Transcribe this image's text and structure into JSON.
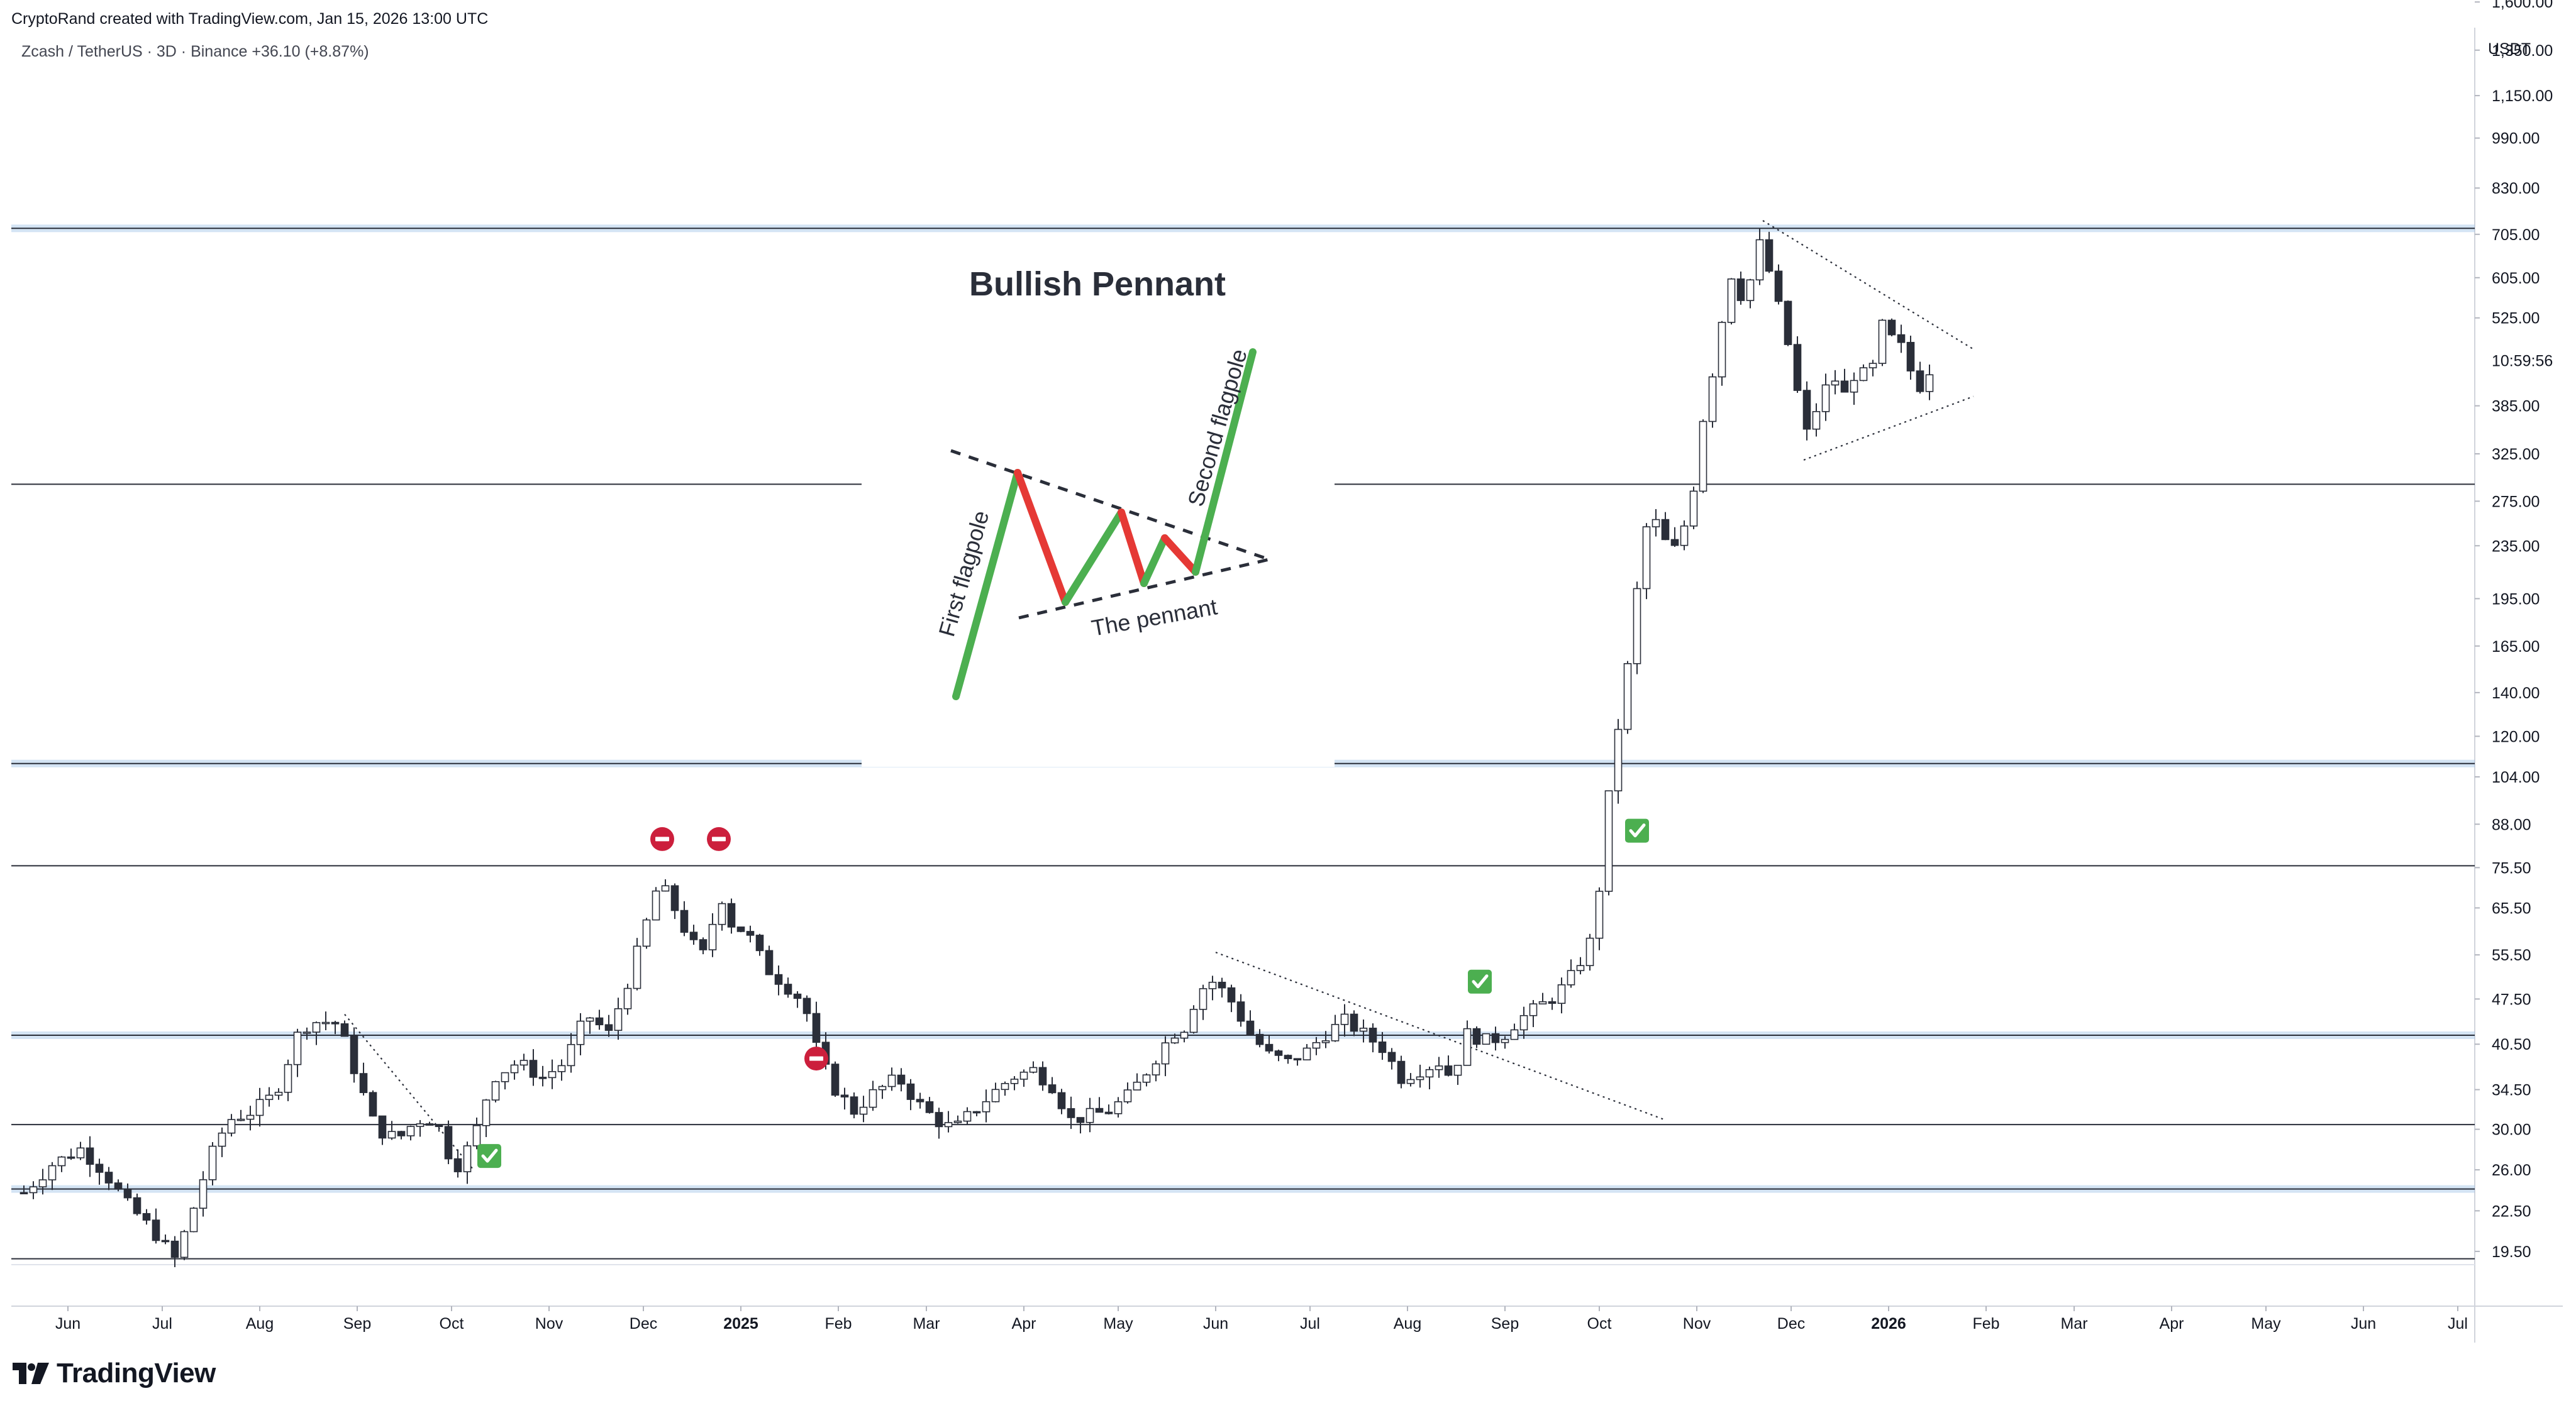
{
  "header": {
    "credit": "CryptoRand created with TradingView.com, Jan 15, 2026 13:00 UTC",
    "symbol": "Zcash / TetherUS · 3D · Binance",
    "change": "+36.10 (+8.87%)"
  },
  "branding": {
    "logo_text": "TradingView",
    "logo_icon": "tradingview-logo-icon"
  },
  "colors": {
    "up_candle": "#ffffff",
    "down_candle": "#2a2e39",
    "candle_outline": "#2a2e39",
    "support_band": "#9fc3e7",
    "pennant_green": "#4caf50",
    "pennant_red": "#e53935",
    "stop_marker": "#cc1f3c",
    "check_marker": "#4caf50"
  },
  "chart_data": {
    "type": "candlestick",
    "y_scale": "log",
    "y_unit": "USDT",
    "ylim": [
      17.5,
      1800
    ],
    "y_ticks": [
      "1,600.00",
      "1,350.00",
      "1,150.00",
      "990.00",
      "830.00",
      "705.00",
      "605.00",
      "525.00",
      "385.00",
      "325.00",
      "275.00",
      "235.00",
      "195.00",
      "165.00",
      "140.00",
      "120.00",
      "104.00",
      "88.00",
      "75.50",
      "65.50",
      "55.50",
      "47.50",
      "40.50",
      "34.50",
      "30.00",
      "26.00",
      "22.50",
      "19.50"
    ],
    "countdown_label": "10:59:56",
    "countdown_value": 452,
    "x_ticks": [
      {
        "label": "Jun",
        "date": "2024-06-01"
      },
      {
        "label": "Jul",
        "date": "2024-07-01"
      },
      {
        "label": "Aug",
        "date": "2024-08-01"
      },
      {
        "label": "Sep",
        "date": "2024-09-01"
      },
      {
        "label": "Oct",
        "date": "2024-10-01"
      },
      {
        "label": "Nov",
        "date": "2024-11-01"
      },
      {
        "label": "Dec",
        "date": "2024-12-01"
      },
      {
        "label": "2025",
        "date": "2025-01-01",
        "bold": true
      },
      {
        "label": "Feb",
        "date": "2025-02-01"
      },
      {
        "label": "Mar",
        "date": "2025-03-01"
      },
      {
        "label": "Apr",
        "date": "2025-04-01"
      },
      {
        "label": "May",
        "date": "2025-05-01"
      },
      {
        "label": "Jun",
        "date": "2025-06-01"
      },
      {
        "label": "Jul",
        "date": "2025-07-01"
      },
      {
        "label": "Aug",
        "date": "2025-08-01"
      },
      {
        "label": "Sep",
        "date": "2025-09-01"
      },
      {
        "label": "Oct",
        "date": "2025-10-01"
      },
      {
        "label": "Nov",
        "date": "2025-11-01"
      },
      {
        "label": "Dec",
        "date": "2025-12-01"
      },
      {
        "label": "2026",
        "date": "2026-01-01",
        "bold": true
      },
      {
        "label": "Feb",
        "date": "2026-02-01"
      },
      {
        "label": "Mar",
        "date": "2026-03-01"
      },
      {
        "label": "Apr",
        "date": "2026-04-01"
      },
      {
        "label": "May",
        "date": "2026-05-01"
      },
      {
        "label": "Jun",
        "date": "2026-06-01"
      },
      {
        "label": "Jul",
        "date": "2026-07-01"
      }
    ],
    "price_path": [
      [
        "2024-05-18",
        24.0
      ],
      [
        "2024-05-27",
        26.5
      ],
      [
        "2024-06-05",
        28.0
      ],
      [
        "2024-06-12",
        26.0
      ],
      [
        "2024-06-20",
        23.0
      ],
      [
        "2024-06-28",
        21.0
      ],
      [
        "2024-07-05",
        19.0
      ],
      [
        "2024-07-10",
        22.0
      ],
      [
        "2024-07-16",
        27.0
      ],
      [
        "2024-07-22",
        31.0
      ],
      [
        "2024-07-30",
        32.0
      ],
      [
        "2024-08-06",
        34.0
      ],
      [
        "2024-08-14",
        43.0
      ],
      [
        "2024-08-20",
        44.0
      ],
      [
        "2024-08-26",
        43.5
      ],
      [
        "2024-09-01",
        36.0
      ],
      [
        "2024-09-07",
        30.0
      ],
      [
        "2024-09-14",
        29.0
      ],
      [
        "2024-09-20",
        31.0
      ],
      [
        "2024-09-26",
        31.0
      ],
      [
        "2024-10-02",
        26.0
      ],
      [
        "2024-10-08",
        29.0
      ],
      [
        "2024-10-14",
        36.0
      ],
      [
        "2024-10-22",
        38.0
      ],
      [
        "2024-10-30",
        36.0
      ],
      [
        "2024-11-06",
        38.0
      ],
      [
        "2024-11-13",
        45.0
      ],
      [
        "2024-11-20",
        42.0
      ],
      [
        "2024-11-27",
        52.0
      ],
      [
        "2024-12-01",
        60.0
      ],
      [
        "2024-12-06",
        72.0
      ],
      [
        "2024-12-12",
        64.0
      ],
      [
        "2024-12-16",
        58.0
      ],
      [
        "2024-12-21",
        55.0
      ],
      [
        "2024-12-25",
        70.0
      ],
      [
        "2024-12-29",
        62.0
      ],
      [
        "2025-01-03",
        60.0
      ],
      [
        "2025-01-09",
        53.0
      ],
      [
        "2025-01-15",
        50.0
      ],
      [
        "2025-01-21",
        47.0
      ],
      [
        "2025-01-25",
        40.0
      ],
      [
        "2025-01-30",
        35.0
      ],
      [
        "2025-02-06",
        32.0
      ],
      [
        "2025-02-12",
        34.0
      ],
      [
        "2025-02-20",
        36.0
      ],
      [
        "2025-02-26",
        33.0
      ],
      [
        "2025-03-04",
        31.0
      ],
      [
        "2025-03-10",
        30.0
      ],
      [
        "2025-03-16",
        32.0
      ],
      [
        "2025-03-22",
        34.0
      ],
      [
        "2025-03-28",
        36.0
      ],
      [
        "2025-04-04",
        37.0
      ],
      [
        "2025-04-10",
        35.0
      ],
      [
        "2025-04-16",
        31.0
      ],
      [
        "2025-04-22",
        31.5
      ],
      [
        "2025-04-28",
        32.0
      ],
      [
        "2025-05-05",
        34.0
      ],
      [
        "2025-05-12",
        38.0
      ],
      [
        "2025-05-18",
        42.0
      ],
      [
        "2025-05-22",
        43.0
      ],
      [
        "2025-05-26",
        48.0
      ],
      [
        "2025-05-30",
        51.0
      ],
      [
        "2025-06-05",
        48.0
      ],
      [
        "2025-06-12",
        42.0
      ],
      [
        "2025-06-18",
        39.0
      ],
      [
        "2025-06-24",
        38.0
      ],
      [
        "2025-06-30",
        39.5
      ],
      [
        "2025-07-06",
        42.0
      ],
      [
        "2025-07-12",
        44.0
      ],
      [
        "2025-07-18",
        42.0
      ],
      [
        "2025-07-24",
        40.0
      ],
      [
        "2025-07-30",
        36.0
      ],
      [
        "2025-08-05",
        37.0
      ],
      [
        "2025-08-11",
        38.0
      ],
      [
        "2025-08-15",
        36.0
      ],
      [
        "2025-08-20",
        42.0
      ],
      [
        "2025-08-26",
        41.0
      ],
      [
        "2025-08-31",
        41.5
      ],
      [
        "2025-09-05",
        44.0
      ],
      [
        "2025-09-11",
        46.0
      ],
      [
        "2025-09-17",
        48.0
      ],
      [
        "2025-09-23",
        52.0
      ],
      [
        "2025-09-28",
        58.0
      ],
      [
        "2025-10-02",
        75.0
      ],
      [
        "2025-10-05",
        110.0
      ],
      [
        "2025-10-09",
        140.0
      ],
      [
        "2025-10-13",
        200.0
      ],
      [
        "2025-10-17",
        270.0
      ],
      [
        "2025-10-21",
        240.0
      ],
      [
        "2025-10-26",
        230.0
      ],
      [
        "2025-10-31",
        290.0
      ],
      [
        "2025-11-04",
        400.0
      ],
      [
        "2025-11-08",
        470.0
      ],
      [
        "2025-11-11",
        640.0
      ],
      [
        "2025-11-14",
        560.0
      ],
      [
        "2025-11-18",
        600.0
      ],
      [
        "2025-11-21",
        680.0
      ],
      [
        "2025-11-25",
        600.0
      ],
      [
        "2025-11-28",
        520.0
      ],
      [
        "2025-12-02",
        440.0
      ],
      [
        "2025-12-05",
        340.0
      ],
      [
        "2025-12-09",
        380.0
      ],
      [
        "2025-12-14",
        430.0
      ],
      [
        "2025-12-18",
        400.0
      ],
      [
        "2025-12-22",
        440.0
      ],
      [
        "2025-12-26",
        420.0
      ],
      [
        "2025-12-30",
        510.0
      ],
      [
        "2026-01-03",
        480.0
      ],
      [
        "2026-01-06",
        470.0
      ],
      [
        "2026-01-09",
        420.0
      ],
      [
        "2026-01-12",
        410.0
      ],
      [
        "2026-01-15",
        452.0
      ]
    ]
  },
  "annotations": {
    "title": "Bullish Pennant",
    "first_flagpole": "First flagpole",
    "second_flagpole": "Second flagpole",
    "the_pennant": "The pennant",
    "horizontal_levels": [
      {
        "price": 720,
        "style": "band"
      },
      {
        "price": 292,
        "style": "line"
      },
      {
        "price": 109,
        "style": "band"
      },
      {
        "price": 76,
        "style": "line"
      },
      {
        "price": 41.8,
        "style": "band"
      },
      {
        "price": 30.5,
        "style": "line"
      },
      {
        "price": 24.3,
        "style": "band"
      },
      {
        "price": 19.0,
        "style": "line"
      }
    ],
    "trendlines": [
      {
        "from": [
          "2024-08-28",
          45
        ],
        "to": [
          "2024-10-08",
          26
        ]
      },
      {
        "from": [
          "2025-06-01",
          56
        ],
        "to": [
          "2025-10-22",
          31
        ]
      },
      {
        "from": [
          "2025-11-22",
          740
        ],
        "to": [
          "2026-01-28",
          470
        ]
      },
      {
        "from": [
          "2025-12-05",
          318
        ],
        "to": [
          "2026-01-28",
          398
        ]
      }
    ],
    "markers": [
      {
        "type": "stop",
        "date": "2024-12-07",
        "price": 83.5
      },
      {
        "type": "stop",
        "date": "2024-12-25",
        "price": 83.5
      },
      {
        "type": "stop",
        "date": "2025-01-25",
        "price": 38.5
      },
      {
        "type": "check",
        "date": "2024-10-13",
        "price": 27.3
      },
      {
        "type": "check",
        "date": "2025-08-24",
        "price": 50.5
      },
      {
        "type": "check",
        "date": "2025-10-13",
        "price": 86.0
      }
    ]
  }
}
